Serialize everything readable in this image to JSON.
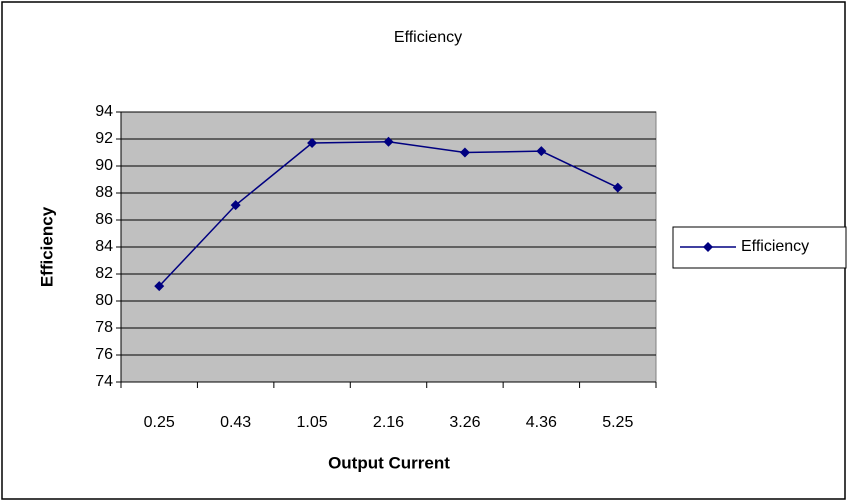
{
  "chart_data": {
    "type": "line",
    "title": "Efficiency",
    "x_label": "Output Current",
    "y_label": "Efficiency",
    "categories": [
      "0.25",
      "0.43",
      "1.05",
      "2.16",
      "3.26",
      "4.36",
      "5.25"
    ],
    "series": [
      {
        "name": "Efficiency",
        "color": "#000080",
        "values": [
          81.1,
          87.1,
          91.7,
          91.8,
          91.0,
          91.1,
          88.4
        ]
      }
    ],
    "ylim": [
      74,
      94
    ],
    "yticks": [
      74,
      76,
      78,
      80,
      82,
      84,
      86,
      88,
      90,
      92,
      94
    ],
    "grid": true,
    "legend": "right",
    "plot_background": "#c0c0c0"
  }
}
